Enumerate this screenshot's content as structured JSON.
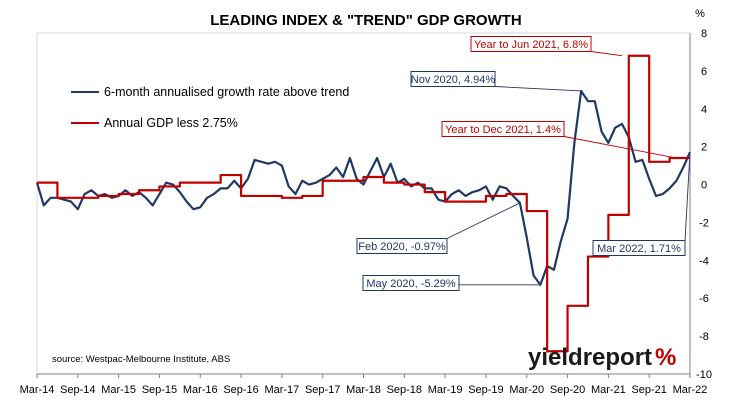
{
  "chart_data": {
    "type": "line",
    "title": "LEADING INDEX & \"TREND\" GDP GROWTH",
    "ylabel": "%",
    "ylim": [
      -10,
      8
    ],
    "yticks": [
      -10,
      -8,
      -6,
      -4,
      -2,
      0,
      2,
      4,
      6,
      8
    ],
    "x_start": "2014-03",
    "x_end": "2022-03",
    "xtick_labels": [
      "Mar-14",
      "Sep-14",
      "Mar-15",
      "Sep-15",
      "Mar-16",
      "Sep-16",
      "Mar-17",
      "Sep-17",
      "Mar-18",
      "Sep-18",
      "Mar-19",
      "Sep-19",
      "Mar-20",
      "Sep-20",
      "Mar-21",
      "Sep-21",
      "Mar-22"
    ],
    "y_axis_side": "right",
    "legend_placement": "top-left",
    "series": [
      {
        "name": "6-month annualised growth rate above trend",
        "color": "#1f3864",
        "step": false,
        "points": [
          [
            "2014-03",
            0.1
          ],
          [
            "2014-04",
            -1.1
          ],
          [
            "2014-05",
            -0.7
          ],
          [
            "2014-06",
            -0.7
          ],
          [
            "2014-07",
            -0.8
          ],
          [
            "2014-08",
            -0.9
          ],
          [
            "2014-09",
            -1.3
          ],
          [
            "2014-10",
            -0.5
          ],
          [
            "2014-11",
            -0.3
          ],
          [
            "2014-12",
            -0.6
          ],
          [
            "2015-01",
            -0.5
          ],
          [
            "2015-02",
            -0.7
          ],
          [
            "2015-03",
            -0.6
          ],
          [
            "2015-04",
            -0.3
          ],
          [
            "2015-05",
            -0.6
          ],
          [
            "2015-06",
            -0.4
          ],
          [
            "2015-07",
            -0.7
          ],
          [
            "2015-08",
            -1.1
          ],
          [
            "2015-09",
            -0.5
          ],
          [
            "2015-10",
            0.1
          ],
          [
            "2015-11",
            0.0
          ],
          [
            "2015-12",
            -0.4
          ],
          [
            "2016-01",
            -0.9
          ],
          [
            "2016-02",
            -1.3
          ],
          [
            "2016-03",
            -1.2
          ],
          [
            "2016-04",
            -0.7
          ],
          [
            "2016-05",
            -0.5
          ],
          [
            "2016-06",
            -0.2
          ],
          [
            "2016-07",
            -0.2
          ],
          [
            "2016-08",
            0.2
          ],
          [
            "2016-09",
            -0.2
          ],
          [
            "2016-10",
            0.3
          ],
          [
            "2016-11",
            1.3
          ],
          [
            "2016-12",
            1.2
          ],
          [
            "2017-01",
            1.1
          ],
          [
            "2017-02",
            1.2
          ],
          [
            "2017-03",
            1.0
          ],
          [
            "2017-04",
            -0.1
          ],
          [
            "2017-05",
            -0.5
          ],
          [
            "2017-06",
            0.2
          ],
          [
            "2017-07",
            0.0
          ],
          [
            "2017-08",
            0.1
          ],
          [
            "2017-09",
            0.3
          ],
          [
            "2017-10",
            0.5
          ],
          [
            "2017-11",
            0.9
          ],
          [
            "2017-12",
            0.4
          ],
          [
            "2018-01",
            1.4
          ],
          [
            "2018-02",
            0.3
          ],
          [
            "2018-03",
            0.0
          ],
          [
            "2018-04",
            0.7
          ],
          [
            "2018-05",
            1.4
          ],
          [
            "2018-06",
            0.4
          ],
          [
            "2018-07",
            1.1
          ],
          [
            "2018-08",
            0.1
          ],
          [
            "2018-09",
            0.3
          ],
          [
            "2018-10",
            -0.1
          ],
          [
            "2018-11",
            0.1
          ],
          [
            "2018-12",
            -0.2
          ],
          [
            "2019-01",
            -0.2
          ],
          [
            "2019-02",
            -0.8
          ],
          [
            "2019-03",
            -0.9
          ],
          [
            "2019-04",
            -0.5
          ],
          [
            "2019-05",
            -0.3
          ],
          [
            "2019-06",
            -0.6
          ],
          [
            "2019-07",
            -0.4
          ],
          [
            "2019-08",
            -0.3
          ],
          [
            "2019-09",
            -0.1
          ],
          [
            "2019-10",
            -0.8
          ],
          [
            "2019-11",
            -0.1
          ],
          [
            "2019-12",
            -0.2
          ],
          [
            "2020-01",
            -0.6
          ],
          [
            "2020-02",
            -0.97
          ],
          [
            "2020-03",
            -2.8
          ],
          [
            "2020-04",
            -4.8
          ],
          [
            "2020-05",
            -5.29
          ],
          [
            "2020-06",
            -4.3
          ],
          [
            "2020-07",
            -4.5
          ],
          [
            "2020-08",
            -3.0
          ],
          [
            "2020-09",
            -1.8
          ],
          [
            "2020-10",
            2.2
          ],
          [
            "2020-11",
            4.94
          ],
          [
            "2020-12",
            4.4
          ],
          [
            "2021-01",
            4.4
          ],
          [
            "2021-02",
            2.8
          ],
          [
            "2021-03",
            2.2
          ],
          [
            "2021-04",
            3.0
          ],
          [
            "2021-05",
            3.2
          ],
          [
            "2021-06",
            2.5
          ],
          [
            "2021-07",
            1.2
          ],
          [
            "2021-08",
            1.3
          ],
          [
            "2021-09",
            0.3
          ],
          [
            "2021-10",
            -0.6
          ],
          [
            "2021-11",
            -0.5
          ],
          [
            "2021-12",
            -0.2
          ],
          [
            "2022-01",
            0.2
          ],
          [
            "2022-02",
            0.9
          ],
          [
            "2022-03",
            1.71
          ]
        ]
      },
      {
        "name": "Annual GDP less 2.75%",
        "color": "#c00000",
        "step": true,
        "points": [
          [
            "2014-03",
            0.1
          ],
          [
            "2014-06",
            -0.7
          ],
          [
            "2014-09",
            -0.7
          ],
          [
            "2014-12",
            -0.6
          ],
          [
            "2015-03",
            -0.5
          ],
          [
            "2015-06",
            -0.3
          ],
          [
            "2015-09",
            -0.1
          ],
          [
            "2015-12",
            0.1
          ],
          [
            "2016-03",
            0.1
          ],
          [
            "2016-06",
            0.5
          ],
          [
            "2016-09",
            -0.6
          ],
          [
            "2016-12",
            -0.6
          ],
          [
            "2017-03",
            -0.7
          ],
          [
            "2017-06",
            -0.6
          ],
          [
            "2017-09",
            0.2
          ],
          [
            "2017-12",
            0.2
          ],
          [
            "2018-03",
            0.4
          ],
          [
            "2018-06",
            0.1
          ],
          [
            "2018-09",
            0.0
          ],
          [
            "2018-12",
            -0.4
          ],
          [
            "2019-03",
            -0.9
          ],
          [
            "2019-06",
            -0.9
          ],
          [
            "2019-09",
            -0.6
          ],
          [
            "2019-12",
            -0.5
          ],
          [
            "2020-03",
            -1.4
          ],
          [
            "2020-06",
            -8.8
          ],
          [
            "2020-09",
            -6.4
          ],
          [
            "2020-12",
            -3.8
          ],
          [
            "2021-03",
            -1.6
          ],
          [
            "2021-06",
            6.8
          ],
          [
            "2021-09",
            1.2
          ],
          [
            "2021-12",
            1.4
          ],
          [
            "2022-03",
            1.4
          ]
        ]
      }
    ],
    "annotations": [
      {
        "text": "Year to Jun 2021, 6.8%",
        "date": "2021-05",
        "value": 6.8,
        "color": "#c00000"
      },
      {
        "text": "Nov 2020, 4.94%",
        "date": "2020-11",
        "value": 4.94,
        "color": "#1f3864"
      },
      {
        "text": "Year to Dec 2021, 1.4%",
        "date": "2022-01",
        "value": 1.4,
        "color": "#c00000"
      },
      {
        "text": "Feb 2020, -0.97%",
        "date": "2020-02",
        "value": -0.97,
        "color": "#1f3864"
      },
      {
        "text": "Mar 2022, 1.71%",
        "date": "2022-03",
        "value": 1.71,
        "color": "#1f3864"
      },
      {
        "text": "May 2020, -5.29%",
        "date": "2020-05",
        "value": -5.29,
        "color": "#1f3864"
      }
    ]
  },
  "source": "source: Westpac-Melbourne Institute, ABS",
  "logo": {
    "main": "yieldreport",
    "accent": "%"
  }
}
